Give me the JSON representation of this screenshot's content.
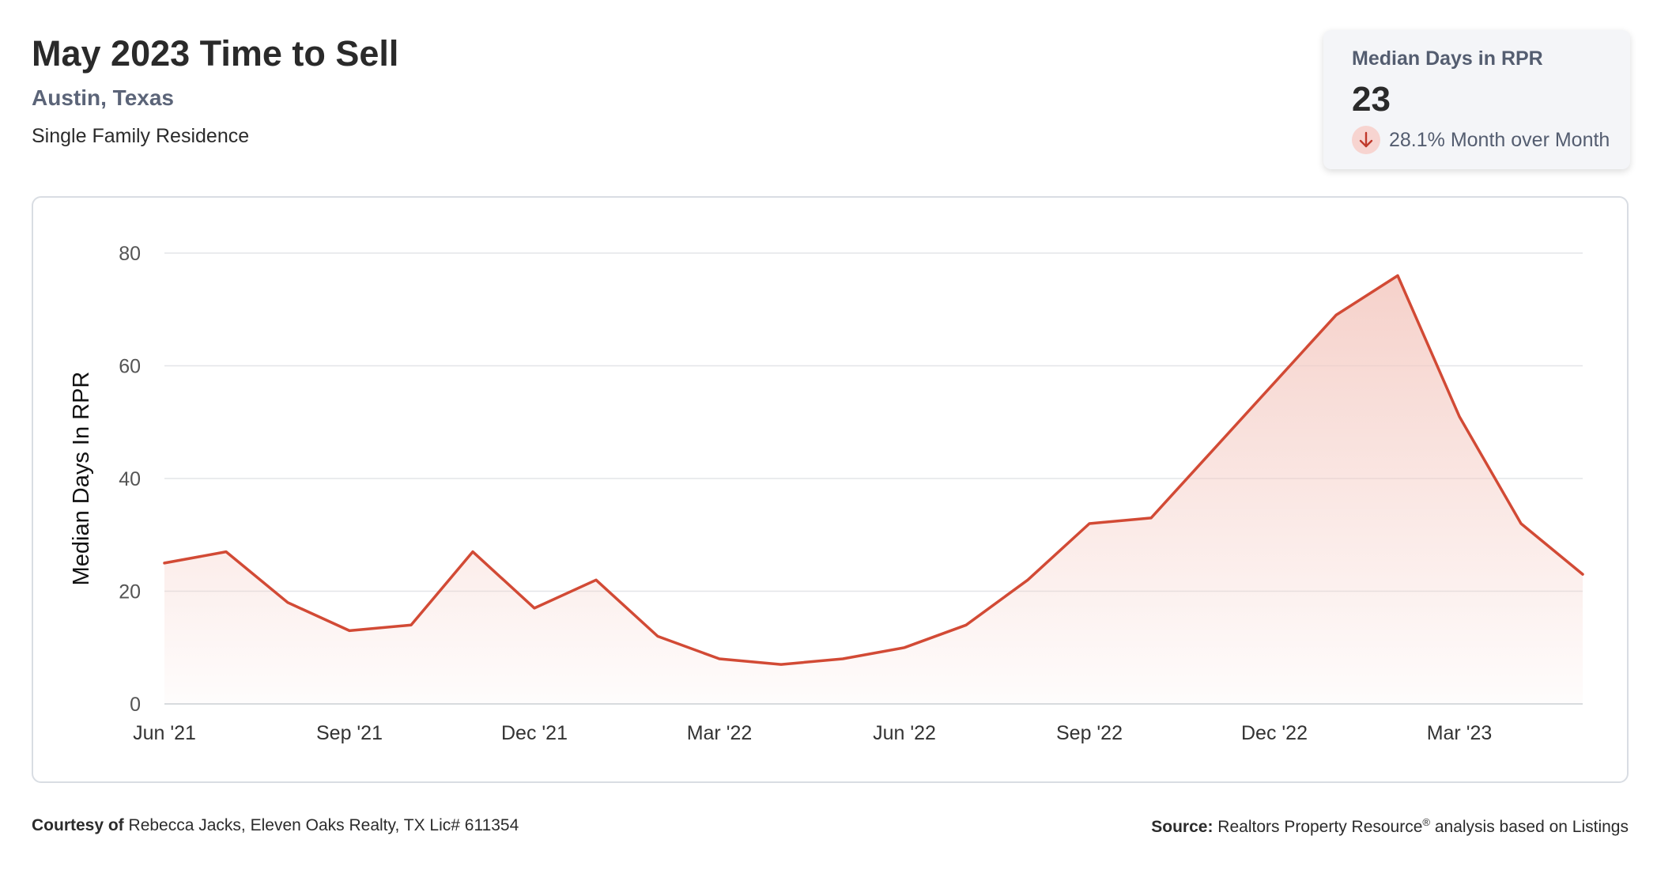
{
  "header": {
    "title": "May 2023 Time to Sell",
    "location": "Austin, Texas",
    "property_type": "Single Family Residence"
  },
  "stat_card": {
    "label": "Median Days in RPR",
    "value": "23",
    "change": "28.1% Month over Month",
    "change_direction": "down",
    "change_icon": "arrow-down-icon"
  },
  "footer": {
    "courtesy_label": "Courtesy of",
    "courtesy_text": "Rebecca Jacks, Eleven Oaks Realty, TX Lic# 611354",
    "source_label": "Source:",
    "source_text_1": "Realtors Property Resource",
    "source_reg": "®",
    "source_text_2": " analysis based on Listings"
  },
  "colors": {
    "line": "#d24a35",
    "area_top": "#f4c9c1",
    "grid": "#e3e5e8",
    "axis_text": "#555555"
  },
  "chart_data": {
    "type": "area",
    "title": "",
    "xlabel": "",
    "ylabel": "Median Days In RPR",
    "ylim": [
      0,
      80
    ],
    "y_ticks": [
      0,
      20,
      40,
      60,
      80
    ],
    "x_tick_labels": [
      "Jun '21",
      "Sep '21",
      "Dec '21",
      "Mar '22",
      "Jun '22",
      "Sep '22",
      "Dec '22",
      "Mar '23"
    ],
    "x_tick_positions": [
      "2021-06",
      "2021-09",
      "2021-12",
      "2022-03",
      "2022-06",
      "2022-09",
      "2022-12",
      "2023-03"
    ],
    "grid": true,
    "legend": "none",
    "x": [
      "2021-06",
      "2021-07",
      "2021-08",
      "2021-09",
      "2021-10",
      "2021-11",
      "2021-12",
      "2022-01",
      "2022-02",
      "2022-03",
      "2022-04",
      "2022-05",
      "2022-06",
      "2022-07",
      "2022-08",
      "2022-09",
      "2022-10",
      "2022-11",
      "2022-12",
      "2023-01",
      "2023-02",
      "2023-03",
      "2023-04",
      "2023-05"
    ],
    "series": [
      {
        "values": [
          25,
          27,
          18,
          13,
          14,
          27,
          17,
          22,
          12,
          8,
          7,
          8,
          10,
          14,
          22,
          32,
          33,
          45,
          57,
          69,
          76,
          51,
          32,
          23
        ]
      }
    ]
  }
}
